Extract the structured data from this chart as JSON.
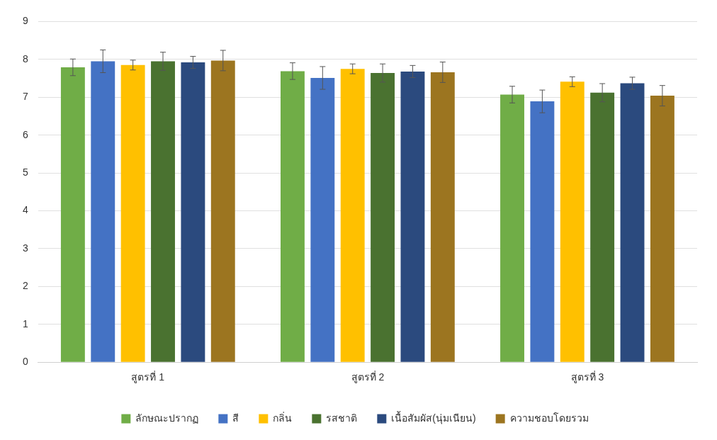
{
  "chart_data": {
    "type": "bar",
    "categories": [
      "สูตรที่ 1",
      "สูตรที่ 2",
      "สูตรที่ 3"
    ],
    "series": [
      {
        "name": "ลักษณะปรากฏ",
        "color": "#70ad47",
        "values": [
          7.79,
          7.69,
          7.07
        ],
        "errors": [
          0.22,
          0.22,
          0.22
        ]
      },
      {
        "name": "สี",
        "color": "#4472c4",
        "values": [
          7.95,
          7.51,
          6.89
        ],
        "errors": [
          0.3,
          0.3,
          0.3
        ]
      },
      {
        "name": "กลิ่น",
        "color": "#ffc000",
        "values": [
          7.85,
          7.75,
          7.41
        ],
        "errors": [
          0.13,
          0.13,
          0.13
        ]
      },
      {
        "name": "รสชาติ",
        "color": "#4a7230",
        "values": [
          7.95,
          7.64,
          7.12
        ],
        "errors": [
          0.24,
          0.24,
          0.24
        ]
      },
      {
        "name": "เนื้อสัมผัส(นุ่มเนียน)",
        "color": "#2b4a7e",
        "values": [
          7.92,
          7.68,
          7.37
        ],
        "errors": [
          0.16,
          0.16,
          0.16
        ]
      },
      {
        "name": "ความชอบโดยรวม",
        "color": "#9c7520",
        "values": [
          7.97,
          7.66,
          7.04
        ],
        "errors": [
          0.27,
          0.27,
          0.27
        ]
      }
    ],
    "ylim": [
      0,
      9
    ],
    "yticks": [
      0,
      1,
      2,
      3,
      4,
      5,
      6,
      7,
      8,
      9
    ],
    "grid": "y",
    "legend": "bottom"
  }
}
